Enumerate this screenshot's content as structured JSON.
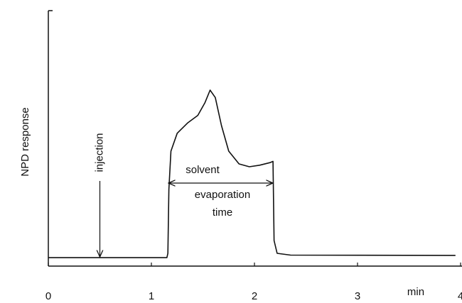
{
  "chart_data": {
    "type": "line",
    "y_label": "NPD response",
    "x_label": "min",
    "xlim": [
      0,
      4
    ],
    "xticks": [
      0,
      1,
      2,
      3,
      4
    ],
    "ylim": [
      0,
      100
    ],
    "x": [
      0,
      1.15,
      1.16,
      1.17,
      1.19,
      1.25,
      1.35,
      1.45,
      1.52,
      1.57,
      1.62,
      1.68,
      1.75,
      1.85,
      1.95,
      2.05,
      2.15,
      2.18,
      2.19,
      2.22,
      2.35,
      3.95
    ],
    "series": [
      {
        "name": "NPD response",
        "color": "#111111",
        "values": [
          3.3,
          3.3,
          5,
          30,
          45,
          52,
          56,
          59,
          64,
          68.9,
          66,
          55,
          45,
          40,
          38.9,
          39.5,
          40.5,
          41,
          10,
          5,
          4.3,
          4.2
        ]
      }
    ],
    "annotations": [
      {
        "text": "injection",
        "x": 0.5
      },
      {
        "text": "solvent"
      },
      {
        "text": "evaporation"
      },
      {
        "text": "time"
      }
    ]
  }
}
